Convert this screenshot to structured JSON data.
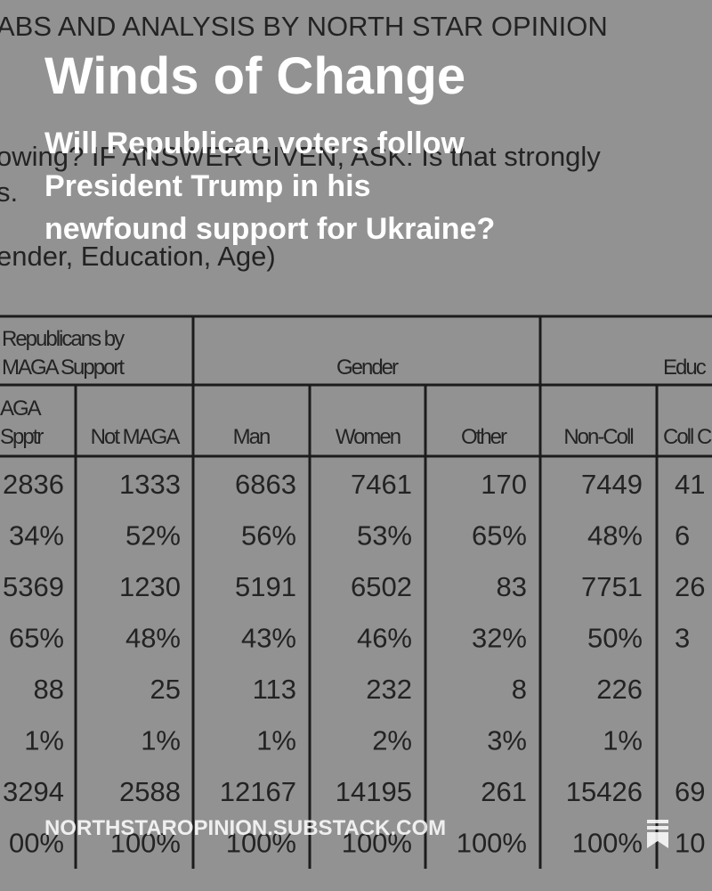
{
  "background": {
    "heading": "ABS AND ANALYSIS BY NORTH STAR OPINION",
    "lines": [
      "owing? IF ANSWER GIVEN, ASK: Is that strongly",
      "s.",
      "ender, Education, Age)"
    ],
    "table": {
      "groups": [
        [
          "Republicans by",
          "MAGA Support"
        ],
        [
          "Gender"
        ],
        [
          "Educ"
        ]
      ],
      "columns": [
        [
          "AGA",
          "Spptr"
        ],
        [
          "Not MAGA"
        ],
        [
          "Man"
        ],
        [
          "Women"
        ],
        [
          "Other"
        ],
        [
          "Non-Coll"
        ],
        [
          "Coll C"
        ]
      ],
      "rows": [
        [
          "2836",
          "1333",
          "6863",
          "7461",
          "170",
          "7449",
          "41"
        ],
        [
          "34%",
          "52%",
          "56%",
          "53%",
          "65%",
          "48%",
          "6"
        ],
        [
          "5369",
          "1230",
          "5191",
          "6502",
          "83",
          "7751",
          "26"
        ],
        [
          "65%",
          "48%",
          "43%",
          "46%",
          "32%",
          "50%",
          "3"
        ],
        [
          "88",
          "25",
          "113",
          "232",
          "8",
          "226"
        ],
        [
          "1%",
          "1%",
          "1%",
          "2%",
          "3%",
          "1%"
        ],
        [
          "3294",
          "2588",
          "12167",
          "14195",
          "261",
          "15426",
          "69"
        ],
        [
          "00%",
          "100%",
          "100%",
          "100%",
          "100%",
          "100%",
          "10"
        ]
      ]
    }
  },
  "card": {
    "title": "Winds of Change",
    "subtitle": [
      "Will Republican voters follow",
      "President Trump in his",
      "newfound support for Ukraine?"
    ],
    "url": "NORTHSTAROPINION.SUBSTACK.COM"
  }
}
